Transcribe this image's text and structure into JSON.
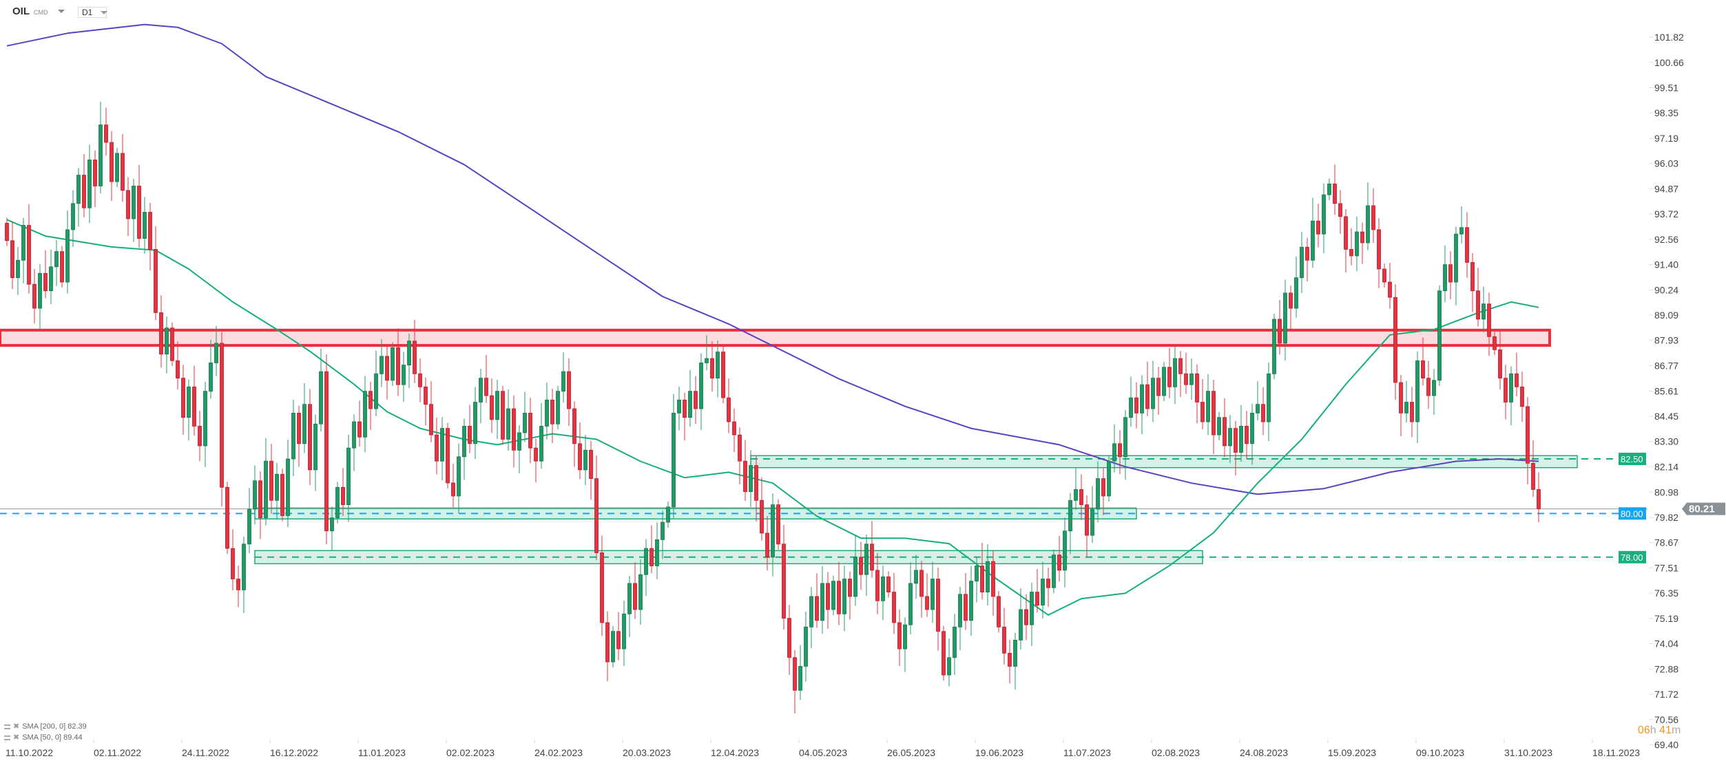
{
  "header": {
    "symbol": "OIL",
    "symbol_type": "CMD",
    "timeframe": "D1"
  },
  "legend": [
    {
      "label": "SMA [200,  0] 82.39"
    },
    {
      "label": "SMA [50,  0] 89.44"
    }
  ],
  "timer": {
    "hours": "06",
    "h_unit": "h",
    "minutes": "41",
    "m_unit": "m"
  },
  "colors": {
    "up": "#1f9b66",
    "down": "#e8303f",
    "sma200": "#5b3fc4",
    "sma50": "#12b07a",
    "zone_green": "#18b07c",
    "zone_red": "#e8303f",
    "blue_line": "#1aa3f0",
    "last_price": "#8a9196"
  },
  "chart_data": {
    "type": "candlestick",
    "title": "OIL CMD D1",
    "ylim": [
      69.4,
      102.4
    ],
    "y_ticks": [
      "101.82",
      "100.66",
      "99.51",
      "98.35",
      "97.19",
      "96.03",
      "94.87",
      "93.72",
      "92.56",
      "91.40",
      "90.24",
      "89.09",
      "87.93",
      "86.77",
      "85.61",
      "84.45",
      "83.30",
      "82.14",
      "80.98",
      "79.82",
      "78.67",
      "77.51",
      "76.35",
      "75.19",
      "74.04",
      "72.88",
      "71.72",
      "70.56",
      "69.40"
    ],
    "x_ticks": [
      {
        "label": "11.10.2022",
        "index": 0
      },
      {
        "label": "02.11.2022",
        "index": 16
      },
      {
        "label": "24.11.2022",
        "index": 32
      },
      {
        "label": "16.12.2022",
        "index": 48
      },
      {
        "label": "11.01.2023",
        "index": 64
      },
      {
        "label": "02.02.2023",
        "index": 80
      },
      {
        "label": "24.02.2023",
        "index": 96
      },
      {
        "label": "20.03.2023",
        "index": 112
      },
      {
        "label": "12.04.2023",
        "index": 128
      },
      {
        "label": "04.05.2023",
        "index": 144
      },
      {
        "label": "26.05.2023",
        "index": 160
      },
      {
        "label": "19.06.2023",
        "index": 176
      },
      {
        "label": "11.07.2023",
        "index": 192
      },
      {
        "label": "02.08.2023",
        "index": 208
      },
      {
        "label": "24.08.2023",
        "index": 224
      },
      {
        "label": "15.09.2023",
        "index": 240
      },
      {
        "label": "09.10.2023",
        "index": 256
      },
      {
        "label": "31.10.2023",
        "index": 272
      },
      {
        "label": "18.11.2023",
        "index": 288
      }
    ],
    "closes": [
      92.5,
      90.8,
      91.6,
      93.2,
      90.5,
      89.4,
      91.0,
      90.2,
      91.3,
      92.0,
      90.6,
      93.0,
      94.2,
      95.5,
      94.0,
      96.2,
      95.0,
      97.8,
      97.0,
      95.2,
      96.5,
      94.8,
      93.5,
      95.0,
      92.6,
      93.8,
      92.1,
      89.2,
      87.3,
      88.5,
      87.0,
      86.2,
      84.4,
      85.8,
      84.0,
      83.1,
      85.6,
      86.9,
      87.8,
      81.2,
      78.4,
      77.0,
      76.5,
      78.6,
      80.2,
      81.5,
      79.8,
      82.4,
      80.6,
      81.8,
      79.9,
      82.5,
      84.6,
      83.2,
      85.0,
      82.0,
      84.1,
      86.5,
      79.2,
      79.8,
      81.2,
      80.4,
      83.0,
      84.2,
      83.5,
      85.6,
      84.8,
      86.4,
      87.2,
      86.1,
      87.6,
      85.9,
      86.8,
      87.9,
      86.4,
      85.8,
      85.0,
      83.6,
      82.4,
      83.9,
      81.4,
      80.8,
      82.6,
      84.0,
      83.2,
      85.1,
      86.2,
      85.4,
      84.3,
      85.6,
      83.4,
      84.8,
      82.9,
      83.7,
      84.6,
      83.0,
      82.4,
      84.0,
      85.2,
      84.1,
      85.6,
      86.5,
      84.8,
      83.2,
      82.0,
      82.9,
      81.6,
      78.2,
      75.0,
      73.2,
      74.6,
      73.8,
      75.4,
      76.8,
      75.6,
      77.2,
      78.4,
      77.6,
      78.8,
      79.6,
      80.3,
      84.6,
      85.2,
      84.4,
      85.6,
      84.8,
      86.9,
      87.1,
      86.2,
      87.4,
      85.3,
      84.2,
      83.6,
      82.4,
      81.0,
      82.2,
      80.6,
      79.1,
      78.0,
      80.4,
      78.6,
      75.2,
      73.4,
      71.9,
      73.0,
      74.8,
      76.2,
      75.1,
      76.8,
      75.6,
      76.9,
      75.4,
      77.0,
      76.2,
      78.0,
      77.2,
      78.6,
      77.4,
      76.0,
      77.1,
      76.4,
      75.0,
      73.8,
      74.9,
      76.8,
      77.4,
      76.2,
      75.6,
      77.0,
      74.6,
      72.6,
      73.4,
      74.8,
      76.3,
      75.1,
      76.9,
      77.6,
      76.4,
      77.8,
      76.2,
      74.8,
      73.6,
      73.0,
      74.2,
      75.6,
      74.9,
      76.4,
      75.8,
      77.0,
      76.6,
      78.1,
      77.4,
      79.2,
      80.6,
      81.1,
      80.4,
      79.0,
      80.2,
      81.6,
      80.8,
      82.4,
      83.2,
      82.6,
      84.4,
      85.3,
      84.6,
      85.9,
      84.8,
      86.2,
      85.4,
      86.7,
      85.8,
      87.1,
      86.4,
      85.9,
      86.4,
      85.1,
      84.2,
      85.6,
      83.6,
      84.4,
      83.1,
      83.9,
      82.8,
      84.0,
      83.2,
      84.6,
      85.0,
      84.2,
      86.4,
      88.9,
      87.8,
      90.1,
      89.4,
      90.8,
      92.2,
      91.6,
      93.4,
      92.8,
      94.6,
      95.1,
      94.2,
      93.6,
      92.1,
      91.8,
      92.9,
      92.4,
      94.1,
      93.0,
      91.2,
      90.6,
      89.9,
      86.0,
      84.6,
      85.1,
      84.2,
      87.0,
      86.2,
      85.4,
      86.1,
      90.2,
      91.4,
      90.6,
      92.8,
      93.1,
      91.5,
      90.2,
      88.9,
      89.6,
      88.1,
      87.5,
      86.2,
      85.1,
      86.4,
      85.8,
      84.9,
      82.3,
      81.1,
      80.21
    ],
    "series": [
      {
        "name": "SMA 200",
        "value": 82.39,
        "points": [
          [
            0,
            101.42
          ],
          [
            11,
            102.0
          ],
          [
            25,
            102.4
          ],
          [
            31,
            102.27
          ],
          [
            39,
            101.52
          ],
          [
            47,
            100.01
          ],
          [
            59,
            98.75
          ],
          [
            71,
            97.49
          ],
          [
            83,
            95.98
          ],
          [
            95,
            93.97
          ],
          [
            107,
            91.95
          ],
          [
            119,
            89.94
          ],
          [
            131,
            88.68
          ],
          [
            139,
            87.68
          ],
          [
            151,
            86.17
          ],
          [
            163,
            84.91
          ],
          [
            175,
            83.9
          ],
          [
            191,
            83.15
          ],
          [
            203,
            82.14
          ],
          [
            215,
            81.39
          ],
          [
            227,
            80.88
          ],
          [
            239,
            81.14
          ],
          [
            251,
            81.89
          ],
          [
            263,
            82.39
          ],
          [
            271,
            82.5
          ],
          [
            278,
            82.39
          ]
        ]
      },
      {
        "name": "SMA 50",
        "value": 89.44,
        "points": [
          [
            0,
            93.46
          ],
          [
            7,
            92.71
          ],
          [
            19,
            92.21
          ],
          [
            27,
            92.06
          ],
          [
            33,
            91.2
          ],
          [
            41,
            89.69
          ],
          [
            49,
            88.43
          ],
          [
            55,
            87.43
          ],
          [
            63,
            85.92
          ],
          [
            69,
            84.66
          ],
          [
            75,
            83.9
          ],
          [
            83,
            83.4
          ],
          [
            89,
            83.15
          ],
          [
            99,
            83.65
          ],
          [
            107,
            83.4
          ],
          [
            115,
            82.39
          ],
          [
            123,
            81.64
          ],
          [
            131,
            81.89
          ],
          [
            139,
            81.39
          ],
          [
            147,
            79.88
          ],
          [
            155,
            78.87
          ],
          [
            163,
            78.87
          ],
          [
            171,
            78.62
          ],
          [
            179,
            77.11
          ],
          [
            189,
            75.35
          ],
          [
            195,
            76.1
          ],
          [
            203,
            76.35
          ],
          [
            211,
            77.61
          ],
          [
            219,
            79.12
          ],
          [
            227,
            81.39
          ],
          [
            235,
            83.4
          ],
          [
            243,
            85.92
          ],
          [
            251,
            88.18
          ],
          [
            259,
            88.43
          ],
          [
            267,
            89.19
          ],
          [
            273,
            89.69
          ],
          [
            278,
            89.44
          ]
        ]
      }
    ],
    "zones": [
      {
        "name": "resistance",
        "color": "red",
        "low": 87.7,
        "high": 88.4,
        "start": -1,
        "end": 280
      },
      {
        "name": "support-82.5",
        "color": "green",
        "low": 82.1,
        "high": 82.65,
        "start": 135,
        "end": 285,
        "level": 82.5,
        "label": "82.50"
      },
      {
        "name": "support-80",
        "color": "green",
        "low": 79.75,
        "high": 80.25,
        "start": 45,
        "end": 205
      },
      {
        "name": "support-78",
        "color": "green",
        "low": 77.7,
        "high": 78.3,
        "start": 45,
        "end": 217,
        "level": 78.0,
        "label": "78.00"
      }
    ],
    "levels": [
      {
        "name": "blue-level",
        "value": 80.0,
        "label": "80.00"
      },
      {
        "name": "last-price",
        "value": 80.21,
        "label": "80.21"
      }
    ]
  }
}
